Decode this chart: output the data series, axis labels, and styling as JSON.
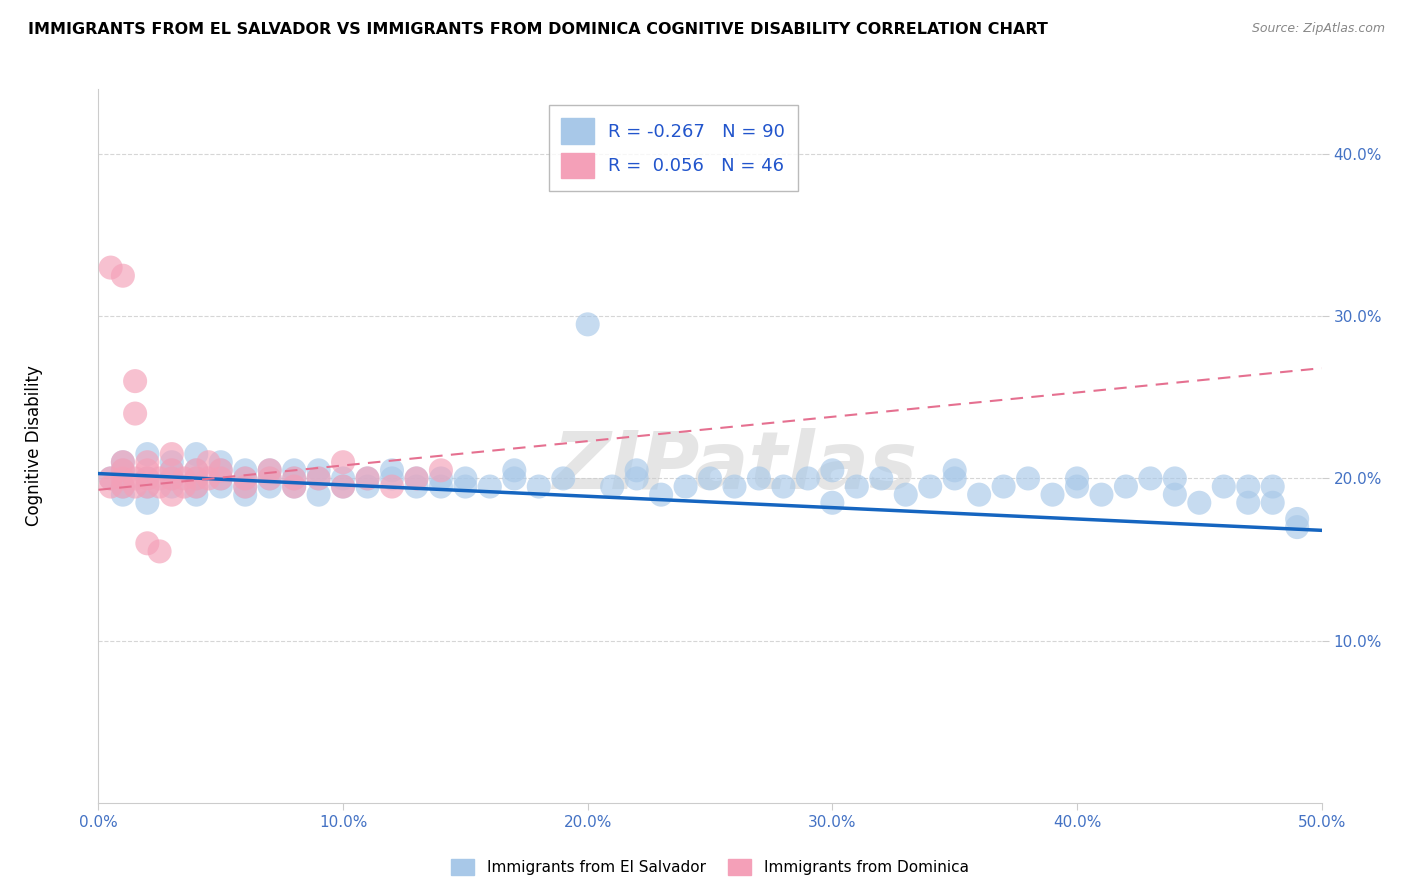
{
  "title": "IMMIGRANTS FROM EL SALVADOR VS IMMIGRANTS FROM DOMINICA COGNITIVE DISABILITY CORRELATION CHART",
  "source": "Source: ZipAtlas.com",
  "ylabel": "Cognitive Disability",
  "xlim": [
    0.0,
    0.5
  ],
  "ylim": [
    0.0,
    0.44
  ],
  "xtick_vals": [
    0.0,
    0.1,
    0.2,
    0.3,
    0.4,
    0.5
  ],
  "xtick_labels": [
    "0.0%",
    "10.0%",
    "20.0%",
    "30.0%",
    "40.0%",
    "50.0%"
  ],
  "ytick_vals": [
    0.1,
    0.2,
    0.3,
    0.4
  ],
  "ytick_labels": [
    "10.0%",
    "20.0%",
    "30.0%",
    "40.0%"
  ],
  "legend1_label": "Immigrants from El Salvador",
  "legend2_label": "Immigrants from Dominica",
  "R1": -0.267,
  "N1": 90,
  "R2": 0.056,
  "N2": 46,
  "color1": "#A8C8E8",
  "color2": "#F4A0B8",
  "trendline1_color": "#1565C0",
  "trendline2_color": "#E57090",
  "background_color": "#FFFFFF",
  "watermark": "ZIPatlas",
  "title_fontsize": 11.5,
  "source_fontsize": 9,
  "tick_color": "#4472C4",
  "trendline1_y_start": 0.203,
  "trendline1_y_end": 0.168,
  "trendline2_y_start": 0.193,
  "trendline2_y_end": 0.268,
  "el_salvador_x": [
    0.005,
    0.01,
    0.01,
    0.01,
    0.01,
    0.02,
    0.02,
    0.02,
    0.02,
    0.03,
    0.03,
    0.03,
    0.03,
    0.04,
    0.04,
    0.04,
    0.04,
    0.04,
    0.05,
    0.05,
    0.05,
    0.05,
    0.06,
    0.06,
    0.06,
    0.06,
    0.07,
    0.07,
    0.07,
    0.08,
    0.08,
    0.08,
    0.09,
    0.09,
    0.09,
    0.1,
    0.1,
    0.11,
    0.11,
    0.12,
    0.12,
    0.13,
    0.13,
    0.14,
    0.14,
    0.15,
    0.15,
    0.16,
    0.17,
    0.17,
    0.18,
    0.19,
    0.2,
    0.21,
    0.22,
    0.22,
    0.23,
    0.24,
    0.25,
    0.26,
    0.27,
    0.28,
    0.29,
    0.3,
    0.3,
    0.31,
    0.32,
    0.33,
    0.34,
    0.35,
    0.35,
    0.36,
    0.37,
    0.38,
    0.39,
    0.4,
    0.4,
    0.41,
    0.42,
    0.43,
    0.44,
    0.44,
    0.45,
    0.46,
    0.47,
    0.47,
    0.48,
    0.48,
    0.49,
    0.49
  ],
  "el_salvador_y": [
    0.2,
    0.195,
    0.205,
    0.19,
    0.21,
    0.2,
    0.215,
    0.185,
    0.195,
    0.2,
    0.205,
    0.195,
    0.21,
    0.195,
    0.2,
    0.205,
    0.19,
    0.215,
    0.195,
    0.2,
    0.205,
    0.21,
    0.195,
    0.2,
    0.205,
    0.19,
    0.2,
    0.205,
    0.195,
    0.2,
    0.205,
    0.195,
    0.2,
    0.205,
    0.19,
    0.195,
    0.2,
    0.195,
    0.2,
    0.2,
    0.205,
    0.195,
    0.2,
    0.195,
    0.2,
    0.195,
    0.2,
    0.195,
    0.2,
    0.205,
    0.195,
    0.2,
    0.295,
    0.195,
    0.2,
    0.205,
    0.19,
    0.195,
    0.2,
    0.195,
    0.2,
    0.195,
    0.2,
    0.185,
    0.205,
    0.195,
    0.2,
    0.19,
    0.195,
    0.2,
    0.205,
    0.19,
    0.195,
    0.2,
    0.19,
    0.195,
    0.2,
    0.19,
    0.195,
    0.2,
    0.19,
    0.2,
    0.185,
    0.195,
    0.185,
    0.195,
    0.185,
    0.195,
    0.175,
    0.17
  ],
  "dominica_x": [
    0.005,
    0.005,
    0.01,
    0.01,
    0.01,
    0.01,
    0.015,
    0.015,
    0.02,
    0.02,
    0.02,
    0.02,
    0.025,
    0.025,
    0.03,
    0.03,
    0.03,
    0.03,
    0.035,
    0.035,
    0.04,
    0.04,
    0.04,
    0.045,
    0.045,
    0.05,
    0.05,
    0.06,
    0.06,
    0.07,
    0.07,
    0.08,
    0.08,
    0.09,
    0.1,
    0.1,
    0.11,
    0.12,
    0.13,
    0.14,
    0.005,
    0.01,
    0.015,
    0.015,
    0.02,
    0.025
  ],
  "dominica_y": [
    0.2,
    0.195,
    0.205,
    0.2,
    0.195,
    0.21,
    0.2,
    0.195,
    0.2,
    0.205,
    0.195,
    0.21,
    0.2,
    0.195,
    0.2,
    0.205,
    0.19,
    0.215,
    0.2,
    0.195,
    0.2,
    0.205,
    0.195,
    0.2,
    0.21,
    0.2,
    0.205,
    0.195,
    0.2,
    0.2,
    0.205,
    0.195,
    0.2,
    0.2,
    0.195,
    0.21,
    0.2,
    0.195,
    0.2,
    0.205,
    0.33,
    0.325,
    0.26,
    0.24,
    0.16,
    0.155
  ]
}
